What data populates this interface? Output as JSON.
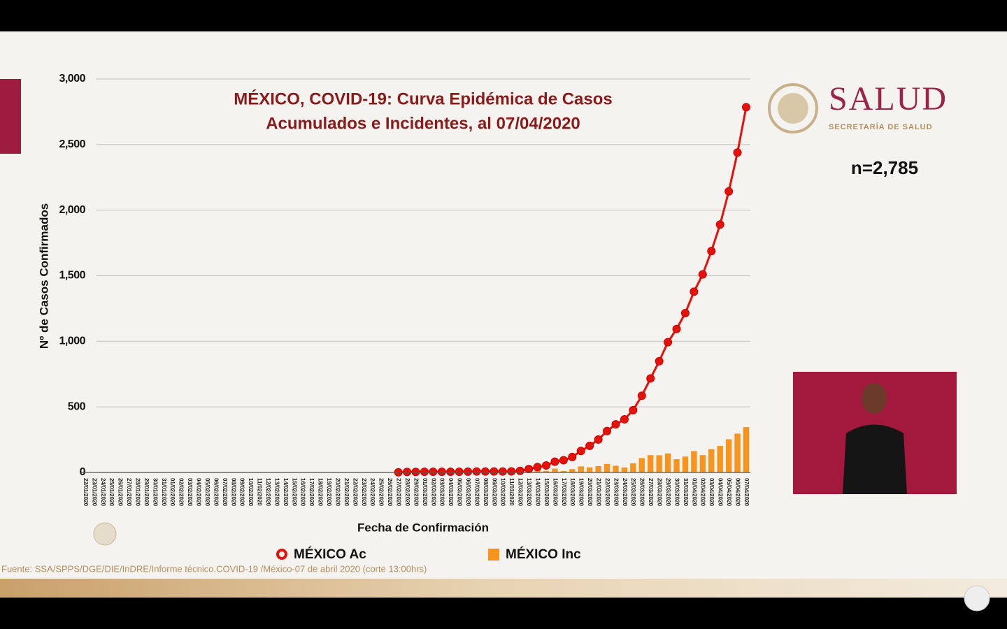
{
  "header": {
    "brand": "SALUD",
    "subbrand": "SECRETARÍA DE SALUD"
  },
  "note": "n=2,785",
  "source": "Fuente: SSA/SPPS/DGE/DIE/InDRE/Informe técnico.COVID-19 /México-07 de abril 2020 (corte 13:00hrs)",
  "chart_data": {
    "type": "line",
    "title": [
      "MÉXICO, COVID-19: Curva Epidémica de Casos",
      "Acumulados e Incidentes, al 07/04/2020"
    ],
    "x_label": "Fecha de Confirmación",
    "y_label": "Nº de Casos Confirmados",
    "categories": [
      "22/01/2020",
      "23/01/2020",
      "24/01/2020",
      "25/01/2020",
      "26/01/2020",
      "27/01/2020",
      "28/01/2020",
      "29/01/2020",
      "30/01/2020",
      "31/01/2020",
      "01/02/2020",
      "02/02/2020",
      "03/02/2020",
      "04/02/2020",
      "05/02/2020",
      "06/02/2020",
      "07/02/2020",
      "08/02/2020",
      "09/02/2020",
      "10/02/2020",
      "11/02/2020",
      "12/02/2020",
      "13/02/2020",
      "14/02/2020",
      "15/02/2020",
      "16/02/2020",
      "17/02/2020",
      "18/02/2020",
      "19/02/2020",
      "20/02/2020",
      "21/02/2020",
      "22/02/2020",
      "23/02/2020",
      "24/02/2020",
      "25/02/2020",
      "26/02/2020",
      "27/02/2020",
      "28/02/2020",
      "29/02/2020",
      "01/03/2020",
      "02/03/2020",
      "03/03/2020",
      "04/03/2020",
      "05/03/2020",
      "06/03/2020",
      "07/03/2020",
      "08/03/2020",
      "09/03/2020",
      "10/03/2020",
      "11/03/2020",
      "12/03/2020",
      "13/03/2020",
      "14/03/2020",
      "15/03/2020",
      "16/03/2020",
      "17/03/2020",
      "18/03/2020",
      "19/03/2020",
      "20/03/2020",
      "21/03/2020",
      "22/03/2020",
      "23/03/2020",
      "24/03/2020",
      "25/03/2020",
      "26/03/2020",
      "27/03/2020",
      "28/03/2020",
      "29/03/2020",
      "30/03/2020",
      "31/03/2020",
      "01/04/2020",
      "02/04/2020",
      "03/04/2020",
      "04/04/2020",
      "05/04/2020",
      "06/04/2020",
      "07/04/2020"
    ],
    "series": [
      {
        "name": "MÉXICO Ac",
        "type": "line",
        "color": "#e3120b",
        "values": [
          null,
          null,
          null,
          null,
          null,
          null,
          null,
          null,
          null,
          null,
          null,
          null,
          null,
          null,
          null,
          null,
          null,
          null,
          null,
          null,
          null,
          null,
          null,
          null,
          null,
          null,
          null,
          null,
          null,
          null,
          null,
          null,
          null,
          null,
          null,
          null,
          1,
          4,
          4,
          5,
          5,
          5,
          5,
          5,
          6,
          7,
          7,
          7,
          7,
          8,
          12,
          26,
          41,
          53,
          82,
          93,
          118,
          164,
          203,
          251,
          316,
          367,
          405,
          475,
          585,
          717,
          848,
          993,
          1094,
          1215,
          1378,
          1510,
          1688,
          1890,
          2143,
          2439,
          2785
        ]
      },
      {
        "name": "MÉXICO Inc",
        "type": "bar",
        "color": "#f7941d",
        "values": [
          null,
          null,
          null,
          null,
          null,
          null,
          null,
          null,
          null,
          null,
          null,
          null,
          null,
          null,
          null,
          null,
          null,
          null,
          null,
          null,
          null,
          null,
          null,
          null,
          null,
          null,
          null,
          null,
          null,
          null,
          null,
          null,
          null,
          null,
          null,
          null,
          1,
          3,
          0,
          1,
          0,
          0,
          0,
          0,
          1,
          1,
          0,
          0,
          0,
          1,
          4,
          14,
          15,
          12,
          29,
          11,
          25,
          46,
          39,
          48,
          65,
          51,
          38,
          70,
          110,
          132,
          131,
          145,
          101,
          121,
          163,
          132,
          178,
          202,
          253,
          296,
          346
        ]
      }
    ],
    "ylim": [
      0,
      3000
    ],
    "yticks": [
      0,
      500,
      {
        "value": 1000,
        "label": "1,000"
      },
      {
        "value": 1500,
        "label": "1,500"
      },
      {
        "value": 2000,
        "label": "2,000"
      },
      {
        "value": 2500,
        "label": "2,500"
      },
      {
        "value": 3000,
        "label": "3,000"
      }
    ],
    "grid": true
  }
}
